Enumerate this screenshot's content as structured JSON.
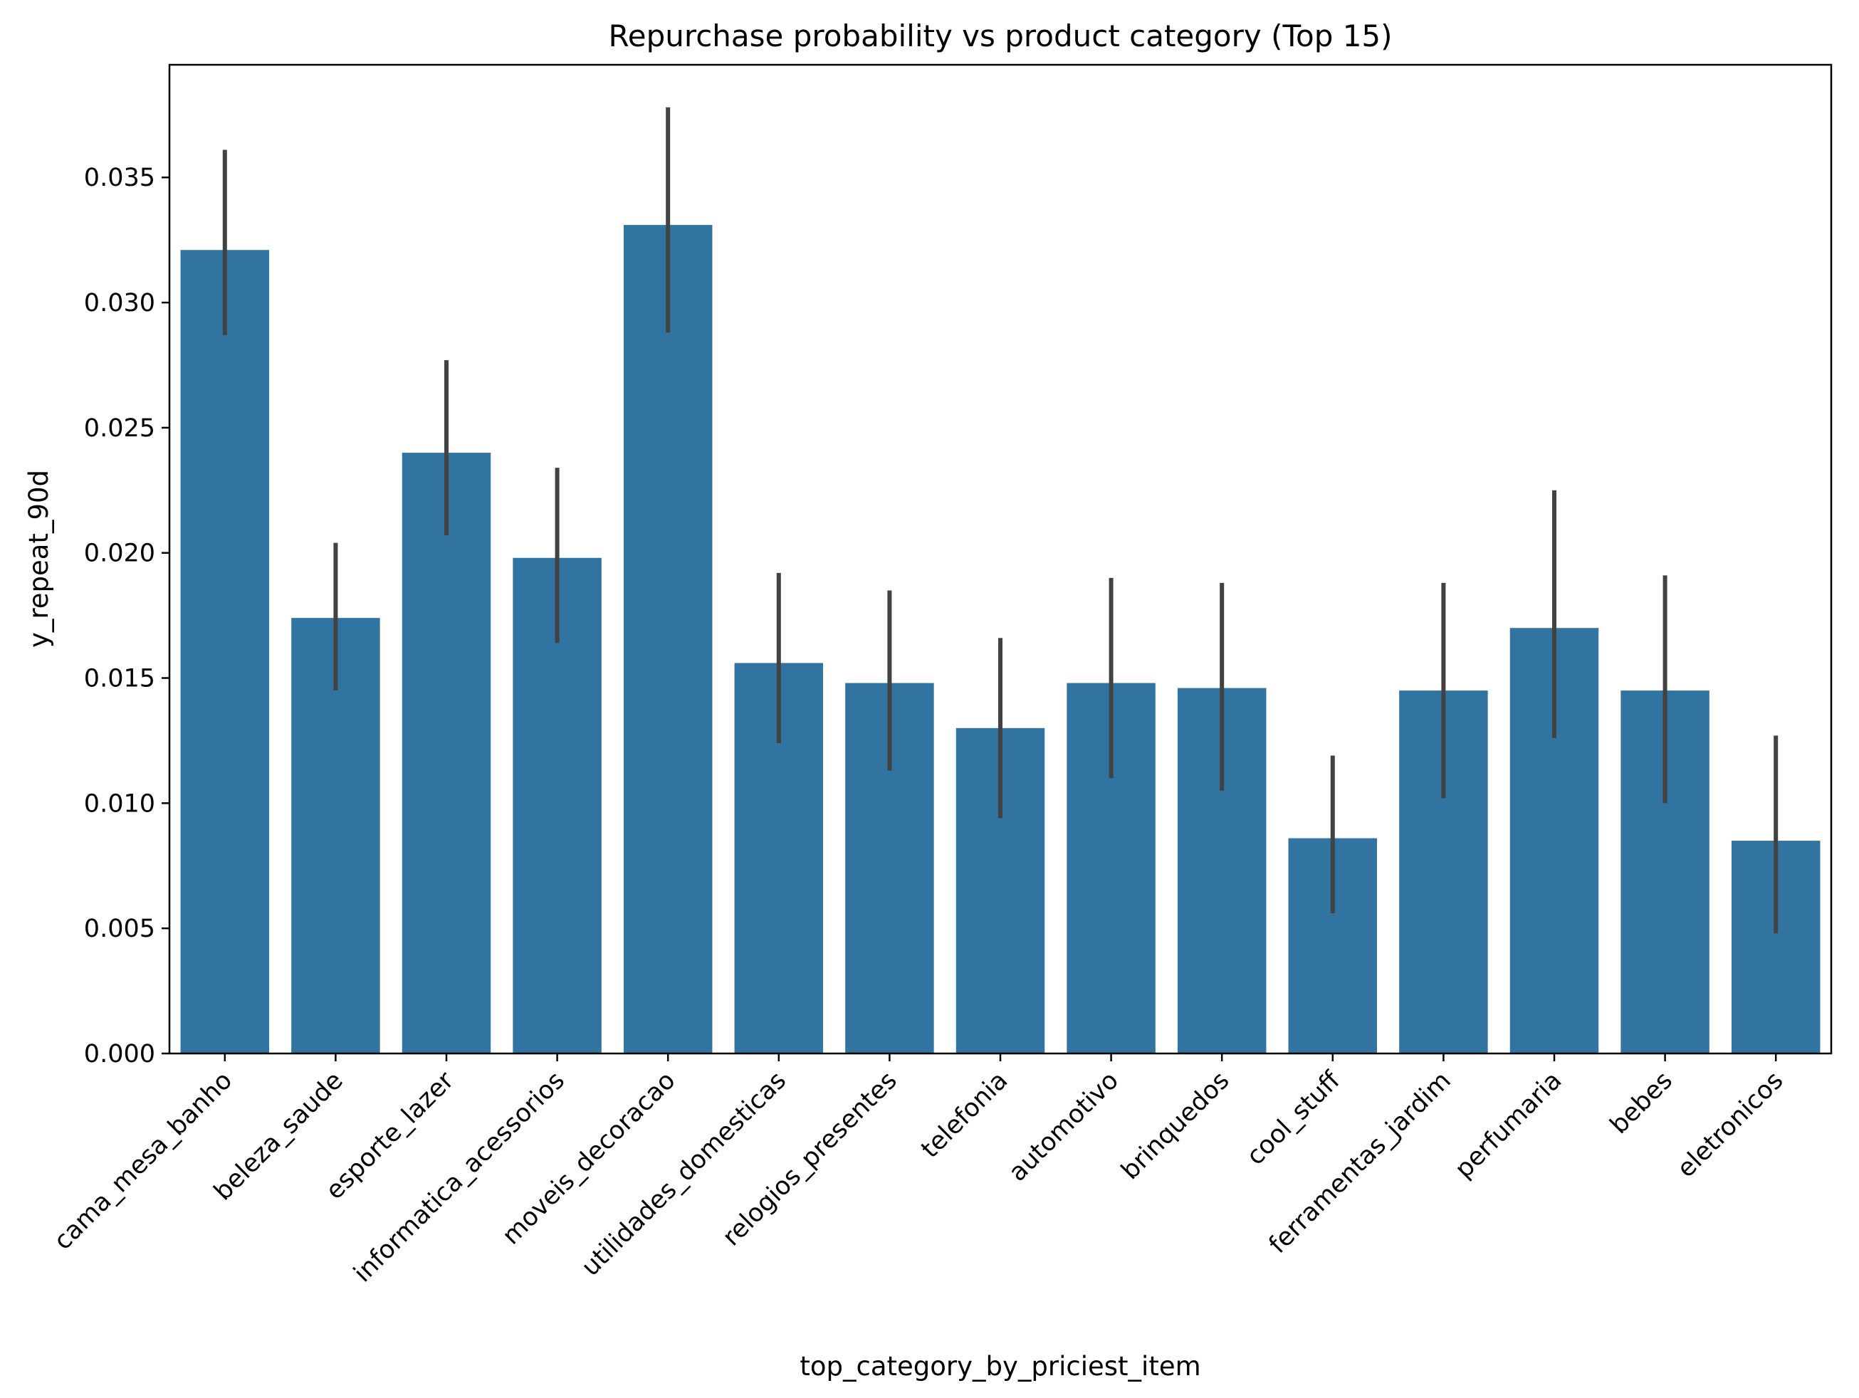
{
  "chart_data": {
    "type": "bar",
    "title": "Repurchase probability vs product category (Top 15)",
    "xlabel": "top_category_by_priciest_item",
    "ylabel": "y_repeat_90d",
    "categories": [
      "cama_mesa_banho",
      "beleza_saude",
      "esporte_lazer",
      "informatica_acessorios",
      "moveis_decoracao",
      "utilidades_domesticas",
      "relogios_presentes",
      "telefonia",
      "automotivo",
      "brinquedos",
      "cool_stuff",
      "ferramentas_jardim",
      "perfumaria",
      "bebes",
      "eletronicos"
    ],
    "values": [
      0.0321,
      0.0174,
      0.024,
      0.0198,
      0.0331,
      0.0156,
      0.0148,
      0.013,
      0.0148,
      0.0146,
      0.0086,
      0.0145,
      0.017,
      0.0145,
      0.0085
    ],
    "error_low": [
      0.0287,
      0.0145,
      0.0207,
      0.0164,
      0.0288,
      0.0124,
      0.0113,
      0.0094,
      0.011,
      0.0105,
      0.0056,
      0.0102,
      0.0126,
      0.01,
      0.0048
    ],
    "error_high": [
      0.0361,
      0.0204,
      0.0277,
      0.0234,
      0.0378,
      0.0192,
      0.0185,
      0.0166,
      0.019,
      0.0188,
      0.0119,
      0.0188,
      0.0225,
      0.0191,
      0.0127
    ],
    "yticks": [
      "0.000",
      "0.005",
      "0.010",
      "0.015",
      "0.020",
      "0.025",
      "0.030",
      "0.035"
    ],
    "ylim": [
      0,
      0.0395
    ],
    "grid": false,
    "bar_color": "#3274a1",
    "error_color": "#424242"
  }
}
